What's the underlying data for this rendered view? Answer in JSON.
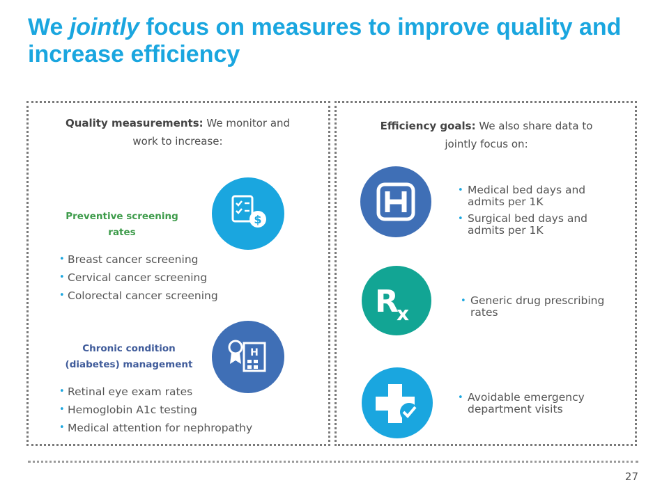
{
  "title": {
    "part1": "We ",
    "emph": "jointly",
    "part2": " focus on measures to improve quality and increase efficiency"
  },
  "left": {
    "intro_bold": "Quality measurements:",
    "intro_rest": " We monitor and work to increase:",
    "preventive": {
      "heading": "Preventive screening rates",
      "items": [
        "Breast  cancer screening",
        "Cervical cancer screening",
        "Colorectal cancer screening"
      ]
    },
    "chronic": {
      "heading": "Chronic condition (diabetes) management",
      "items": [
        "Retinal eye exam rates",
        "Hemoglobin A1c testing",
        "Medical attention for nephropathy"
      ]
    }
  },
  "right": {
    "intro_bold": "Efficiency goals:",
    "intro_rest": " We also share data to jointly focus on:",
    "groups": [
      {
        "icon": "hospital-h-icon",
        "items": [
          "Medical bed days  and admits per 1K",
          "Surgical bed days and admits per 1K"
        ]
      },
      {
        "icon": "rx-icon",
        "items": [
          "Generic drug prescribing rates"
        ]
      },
      {
        "icon": "cross-check-icon",
        "items": [
          "Avoidable emergency department visits"
        ]
      }
    ]
  },
  "icons": {
    "preventive": "checklist-dollar-icon",
    "chronic": "award-hospital-icon"
  },
  "colors": {
    "title": "#1aa6df",
    "icon_blue_bright": "#1aa6df",
    "icon_blue_dark": "#3f6fb6",
    "icon_teal": "#12a594",
    "heading_green": "#3d9b4a",
    "heading_navy": "#3f5b9a"
  },
  "page_number": "27"
}
